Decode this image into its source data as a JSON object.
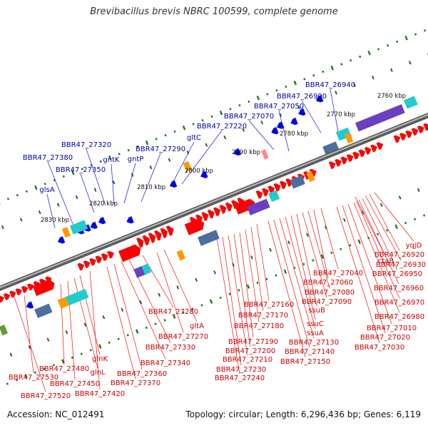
{
  "header": {
    "title": "Brevibacillus brevis NBRC 100599, complete genome"
  },
  "footer": {
    "accession": "Accession: NC_012491",
    "summary": "Topology: circular; Length: 6,296,436 bp; Genes: 6,119"
  },
  "colors": {
    "backbone": "#808080",
    "forward_gene": "#ff0000",
    "reverse_gene": "#0000ee",
    "upper_label": "#0000aa",
    "lower_label": "#cc0000",
    "tick": "#1a7a1a",
    "cds_block": "#4d6e9e",
    "trna_block": "#ff9900",
    "cyan_block": "#22cccc",
    "purple_block": "#6a40c0"
  },
  "scale_labels": [
    "2760 kbp",
    "2770 kbp",
    "2780 kbp",
    "2790 kbp",
    "2800 kbp",
    "2810 kbp",
    "2820 kbp",
    "2830 kbp"
  ],
  "upper_gene_labels": [
    "BBR47_26940",
    "BBR47_26990",
    "BBR47_27050",
    "BBR47_27070",
    "BBR47_27220",
    "gltC",
    "BBR47_27290",
    "gntP",
    "gntK",
    "BBR47_27320",
    "BBR47_27350",
    "BBR47_27380",
    "glsA"
  ],
  "lower_gene_labels": [
    "yqjD",
    "BBR47_26920",
    "BBR47_26930",
    "ctaB",
    "BBR47_26950",
    "BBR47_26960",
    "BBR47_26970",
    "BBR47_26980",
    "BBR47_27010",
    "BBR47_27020",
    "BBR47_27030",
    "BBR47_27040",
    "BBR47_27060",
    "BBR47_27080",
    "BBR47_27090",
    "ssuB",
    "ssuC",
    "ssuA",
    "BBR47_27130",
    "BBR47_27140",
    "BBR47_27150",
    "BBR47_27160",
    "BBR47_27170",
    "BBR47_27180",
    "BBR47_27190",
    "BBR47_27200",
    "BBR47_27210",
    "BBR47_27230",
    "BBR47_27240",
    "gltA",
    "BBR47_27270",
    "BBR47_27280",
    "BBR47_27330",
    "BBR47_27340",
    "BBR47_27360",
    "BBR47_27370",
    "BBR47_27420",
    "glnK",
    "glnL",
    "BBR47_27450",
    "BBR47_27480",
    "BBR47_27530",
    "BBR47_27520"
  ]
}
